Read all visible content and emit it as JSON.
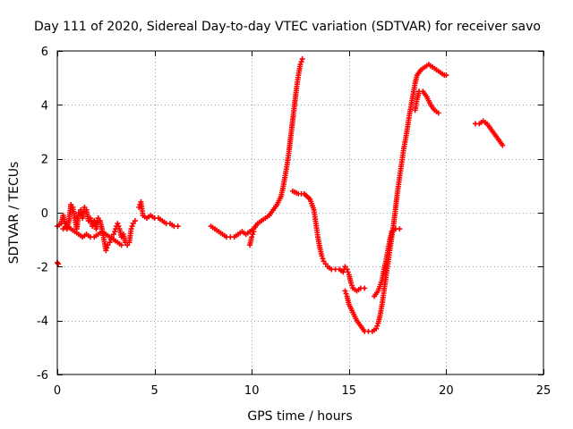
{
  "chart_data": {
    "type": "scatter",
    "title": "Day 111 of 2020, Sidereal Day-to-day VTEC variation (SDTVAR) for receiver savo",
    "xlabel": "GPS time / hours",
    "ylabel": "SDTVAR / TECUs",
    "xlim": [
      0,
      25
    ],
    "ylim": [
      -6,
      6
    ],
    "x_ticks": [
      0,
      5,
      10,
      15,
      20,
      25
    ],
    "y_ticks": [
      -6,
      -4,
      -2,
      0,
      2,
      4,
      6
    ],
    "x_tick_labels": [
      "0",
      "5",
      "10",
      "15",
      "20",
      "25"
    ],
    "y_tick_labels": [
      "-6",
      "-4",
      "-2",
      "0",
      "2",
      "4",
      "6"
    ],
    "grid": true,
    "legend": "none",
    "marker": "+",
    "series": [
      {
        "name": "SDTVAR",
        "color": "#ff0000",
        "segments": [
          [
            [
              0.0,
              -0.5
            ],
            [
              0.2,
              -0.4
            ],
            [
              0.3,
              -0.1
            ],
            [
              0.4,
              -0.4
            ],
            [
              0.5,
              -0.6
            ],
            [
              0.6,
              -0.3
            ],
            [
              0.7,
              0.3
            ],
            [
              0.8,
              0.2
            ],
            [
              0.9,
              -0.2
            ],
            [
              1.0,
              -0.6
            ],
            [
              1.1,
              0.0
            ],
            [
              1.2,
              0.1
            ],
            [
              1.3,
              -0.2
            ],
            [
              1.4,
              0.2
            ],
            [
              1.5,
              0.1
            ],
            [
              1.6,
              -0.3
            ],
            [
              1.7,
              -0.2
            ],
            [
              1.8,
              -0.5
            ],
            [
              1.9,
              -0.3
            ],
            [
              2.0,
              -0.6
            ],
            [
              2.1,
              -0.2
            ],
            [
              2.2,
              -0.3
            ],
            [
              2.3,
              -0.6
            ],
            [
              2.4,
              -1.0
            ],
            [
              2.5,
              -1.4
            ],
            [
              2.6,
              -1.2
            ],
            [
              2.7,
              -1.1
            ],
            [
              2.8,
              -0.9
            ],
            [
              2.9,
              -0.8
            ],
            [
              3.0,
              -0.6
            ],
            [
              3.1,
              -0.4
            ],
            [
              3.2,
              -0.6
            ],
            [
              3.3,
              -0.9
            ],
            [
              3.4,
              -0.8
            ],
            [
              3.5,
              -1.1
            ],
            [
              3.6,
              -1.2
            ],
            [
              3.7,
              -1.1
            ],
            [
              3.8,
              -0.6
            ],
            [
              3.9,
              -0.4
            ],
            [
              4.0,
              -0.3
            ]
          ],
          [
            [
              0.0,
              -1.85
            ],
            [
              0.05,
              -1.9
            ]
          ],
          [
            [
              0.3,
              -0.6
            ],
            [
              0.5,
              -0.5
            ],
            [
              0.7,
              -0.6
            ],
            [
              0.9,
              -0.7
            ],
            [
              1.1,
              -0.8
            ],
            [
              1.3,
              -0.9
            ],
            [
              1.5,
              -0.8
            ],
            [
              1.7,
              -0.9
            ],
            [
              1.9,
              -0.9
            ],
            [
              2.1,
              -0.8
            ],
            [
              2.3,
              -0.7
            ],
            [
              2.5,
              -0.8
            ],
            [
              2.7,
              -0.9
            ],
            [
              2.9,
              -1.0
            ],
            [
              3.1,
              -1.1
            ],
            [
              3.3,
              -1.2
            ]
          ],
          [
            [
              4.2,
              0.2
            ],
            [
              4.3,
              0.4
            ],
            [
              4.4,
              -0.1
            ],
            [
              4.6,
              -0.2
            ],
            [
              4.8,
              -0.1
            ],
            [
              5.0,
              -0.2
            ],
            [
              5.2,
              -0.2
            ],
            [
              5.4,
              -0.3
            ],
            [
              5.6,
              -0.4
            ],
            [
              5.8,
              -0.4
            ],
            [
              6.0,
              -0.5
            ],
            [
              6.2,
              -0.5
            ]
          ],
          [
            [
              7.9,
              -0.5
            ],
            [
              8.1,
              -0.6
            ],
            [
              8.3,
              -0.7
            ],
            [
              8.5,
              -0.8
            ],
            [
              8.7,
              -0.9
            ],
            [
              8.9,
              -0.9
            ],
            [
              9.1,
              -0.9
            ],
            [
              9.3,
              -0.8
            ],
            [
              9.5,
              -0.7
            ],
            [
              9.7,
              -0.8
            ],
            [
              9.9,
              -0.7
            ],
            [
              10.1,
              -0.6
            ],
            [
              10.3,
              -0.4
            ],
            [
              10.5,
              -0.3
            ],
            [
              10.7,
              -0.2
            ],
            [
              10.9,
              -0.1
            ],
            [
              11.1,
              0.1
            ],
            [
              11.3,
              0.3
            ],
            [
              11.5,
              0.6
            ],
            [
              11.6,
              0.9
            ],
            [
              11.7,
              1.3
            ],
            [
              11.8,
              1.7
            ],
            [
              11.9,
              2.2
            ],
            [
              12.0,
              2.8
            ],
            [
              12.1,
              3.4
            ],
            [
              12.2,
              4.0
            ],
            [
              12.3,
              4.6
            ],
            [
              12.4,
              5.1
            ],
            [
              12.5,
              5.5
            ],
            [
              12.6,
              5.7
            ]
          ],
          [
            [
              9.9,
              -1.2
            ],
            [
              10.0,
              -0.9
            ],
            [
              10.1,
              -0.7
            ]
          ],
          [
            [
              12.1,
              0.8
            ],
            [
              12.4,
              0.7
            ],
            [
              12.7,
              0.7
            ],
            [
              13.0,
              0.5
            ],
            [
              13.2,
              0.1
            ],
            [
              13.3,
              -0.4
            ],
            [
              13.4,
              -0.9
            ],
            [
              13.5,
              -1.3
            ],
            [
              13.6,
              -1.6
            ],
            [
              13.7,
              -1.8
            ],
            [
              13.8,
              -1.9
            ],
            [
              13.9,
              -2.0
            ],
            [
              14.1,
              -2.1
            ],
            [
              14.3,
              -2.1
            ],
            [
              14.5,
              -2.1
            ],
            [
              14.7,
              -2.2
            ],
            [
              14.8,
              -2.0
            ],
            [
              14.9,
              -2.1
            ],
            [
              15.0,
              -2.3
            ],
            [
              15.1,
              -2.6
            ],
            [
              15.2,
              -2.8
            ],
            [
              15.4,
              -2.9
            ],
            [
              15.6,
              -2.8
            ],
            [
              15.8,
              -2.8
            ]
          ],
          [
            [
              14.8,
              -2.9
            ],
            [
              14.9,
              -3.1
            ],
            [
              15.0,
              -3.4
            ],
            [
              15.2,
              -3.7
            ],
            [
              15.4,
              -4.0
            ],
            [
              15.6,
              -4.2
            ],
            [
              15.8,
              -4.4
            ],
            [
              16.0,
              -4.4
            ],
            [
              16.2,
              -4.4
            ],
            [
              16.4,
              -4.3
            ],
            [
              16.5,
              -4.1
            ],
            [
              16.6,
              -3.8
            ],
            [
              16.7,
              -3.4
            ],
            [
              16.8,
              -2.9
            ],
            [
              16.9,
              -2.4
            ],
            [
              17.0,
              -1.9
            ],
            [
              17.1,
              -1.4
            ],
            [
              17.2,
              -0.9
            ],
            [
              17.3,
              -0.4
            ],
            [
              17.4,
              0.2
            ],
            [
              17.5,
              0.8
            ],
            [
              17.6,
              1.3
            ],
            [
              17.7,
              1.8
            ],
            [
              17.8,
              2.3
            ],
            [
              17.9,
              2.7
            ],
            [
              18.0,
              3.1
            ],
            [
              18.1,
              3.6
            ],
            [
              18.2,
              4.0
            ],
            [
              18.3,
              4.4
            ],
            [
              18.4,
              4.8
            ],
            [
              18.5,
              5.1
            ],
            [
              18.7,
              5.3
            ],
            [
              18.9,
              5.4
            ],
            [
              19.1,
              5.5
            ],
            [
              19.3,
              5.4
            ],
            [
              19.5,
              5.3
            ],
            [
              19.7,
              5.2
            ],
            [
              19.9,
              5.1
            ],
            [
              20.0,
              5.1
            ]
          ],
          [
            [
              16.3,
              -3.1
            ],
            [
              16.5,
              -2.9
            ],
            [
              16.7,
              -2.5
            ],
            [
              16.8,
              -2.1
            ],
            [
              16.9,
              -1.8
            ],
            [
              17.0,
              -1.4
            ],
            [
              17.1,
              -1.0
            ],
            [
              17.2,
              -0.7
            ],
            [
              17.4,
              -0.6
            ],
            [
              17.6,
              -0.6
            ]
          ],
          [
            [
              18.4,
              3.8
            ],
            [
              18.5,
              4.2
            ],
            [
              18.6,
              4.5
            ],
            [
              18.8,
              4.5
            ],
            [
              19.0,
              4.3
            ],
            [
              19.2,
              4.0
            ],
            [
              19.4,
              3.8
            ],
            [
              19.6,
              3.7
            ]
          ],
          [
            [
              21.5,
              3.3
            ],
            [
              21.7,
              3.3
            ],
            [
              21.9,
              3.4
            ],
            [
              22.1,
              3.3
            ],
            [
              22.3,
              3.1
            ],
            [
              22.5,
              2.9
            ],
            [
              22.7,
              2.7
            ],
            [
              22.9,
              2.5
            ]
          ]
        ]
      }
    ]
  }
}
